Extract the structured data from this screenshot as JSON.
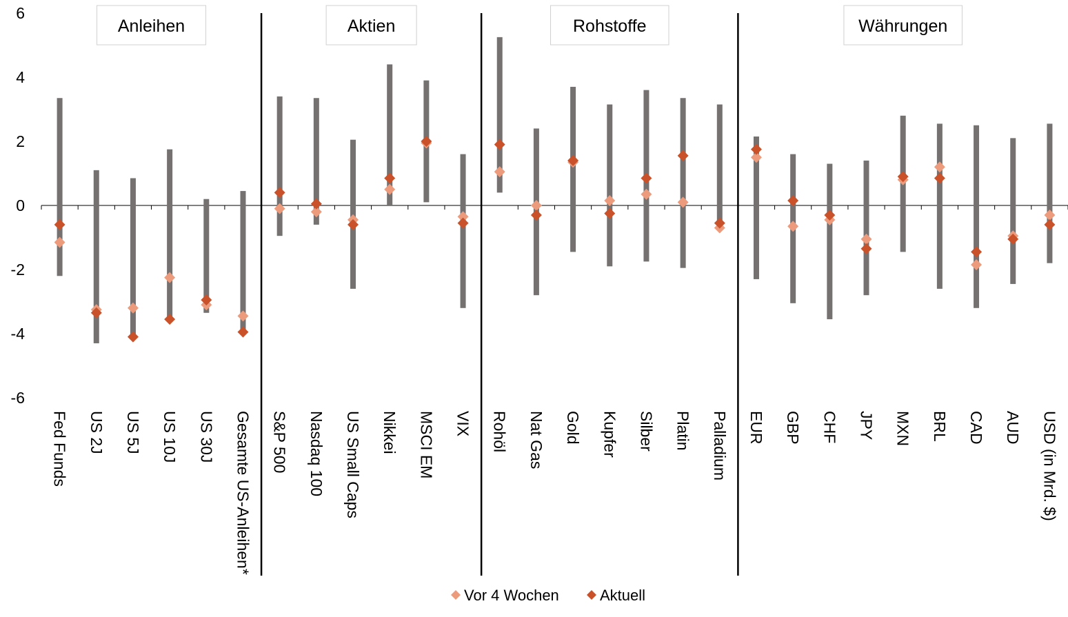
{
  "chart_data": {
    "type": "range-dot",
    "ylim": [
      -6,
      6
    ],
    "yticks": [
      -6,
      -4,
      -2,
      0,
      2,
      4,
      6
    ],
    "groups": [
      {
        "label": "Anleihen",
        "start": 0,
        "end": 5
      },
      {
        "label": "Aktien",
        "start": 6,
        "end": 11
      },
      {
        "label": "Rohstoffe",
        "start": 12,
        "end": 18
      },
      {
        "label": "Währungen",
        "start": 19,
        "end": 27
      }
    ],
    "categories": [
      "Fed Funds",
      "US 2J",
      "US 5J",
      "US 10J",
      "US 30J",
      "Gesamte US-Anleihen*",
      "S&P 500",
      "Nasdaq 100",
      "US Small Caps",
      "Nikkei",
      "MSCI EM",
      "VIX",
      "Rohöl",
      "Nat Gas",
      "Gold",
      "Kupfer",
      "Silber",
      "Platin",
      "Palladium",
      "EUR",
      "GBP",
      "CHF",
      "JPY",
      "MXN",
      "BRL",
      "CAD",
      "AUD",
      "USD (in Mrd. $)"
    ],
    "range_low": [
      -2.2,
      -4.3,
      -4.1,
      -3.6,
      -3.35,
      -3.9,
      -0.95,
      -0.6,
      -2.6,
      0.0,
      0.1,
      -3.2,
      0.4,
      -2.8,
      -1.45,
      -1.9,
      -1.75,
      -1.95,
      -0.75,
      -2.3,
      -3.05,
      -3.55,
      -2.8,
      -1.45,
      -2.6,
      -3.2,
      -2.45,
      -1.8
    ],
    "range_high": [
      3.35,
      1.1,
      0.85,
      1.75,
      0.2,
      0.45,
      3.4,
      3.35,
      2.05,
      4.4,
      3.9,
      1.6,
      5.25,
      2.4,
      3.7,
      3.15,
      3.6,
      3.35,
      3.15,
      2.15,
      1.6,
      1.3,
      1.4,
      2.8,
      2.55,
      2.5,
      2.1,
      2.55
    ],
    "series": [
      {
        "name": "Vor 4 Wochen",
        "color": "#ec9b7d",
        "values": [
          -1.15,
          -3.25,
          -3.2,
          -2.25,
          -3.1,
          -3.45,
          -0.1,
          -0.2,
          -0.45,
          0.5,
          1.95,
          -0.35,
          1.05,
          0.0,
          1.35,
          0.15,
          0.35,
          0.1,
          -0.7,
          1.5,
          -0.65,
          -0.45,
          -1.05,
          0.8,
          1.2,
          -1.85,
          -0.95,
          -0.3
        ]
      },
      {
        "name": "Aktuell",
        "color": "#c9522a",
        "values": [
          -0.6,
          -3.35,
          -4.1,
          -3.55,
          -2.95,
          -3.95,
          0.4,
          0.05,
          -0.6,
          0.85,
          2.0,
          -0.55,
          1.9,
          -0.3,
          1.4,
          -0.25,
          0.85,
          1.55,
          -0.55,
          1.75,
          0.15,
          -0.3,
          -1.35,
          0.9,
          0.85,
          -1.45,
          -1.05,
          -0.6
        ]
      }
    ],
    "range_color": "#767171",
    "grid": false,
    "legend_position": "bottom"
  }
}
